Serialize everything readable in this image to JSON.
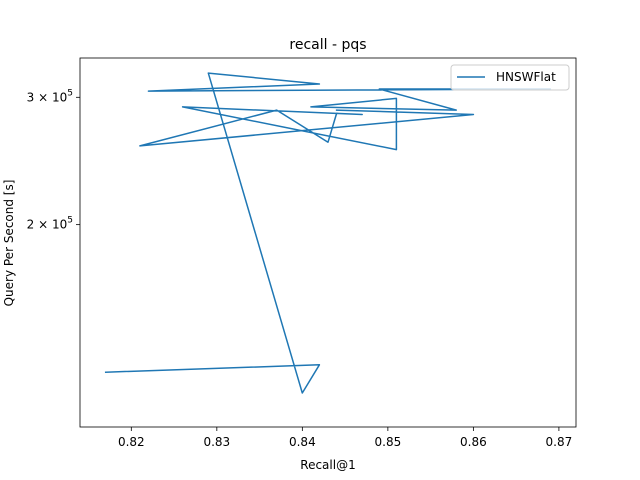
{
  "chart_data": {
    "type": "line",
    "title": "recall - pqs",
    "xlabel": "Recall@1",
    "ylabel": "Query Per Second [s]",
    "xlim": [
      0.814,
      0.872
    ],
    "ylim": [
      105000,
      340000
    ],
    "yscale": "log",
    "grid": false,
    "legend_position": "top-right",
    "x_ticks": [
      0.82,
      0.83,
      0.84,
      0.85,
      0.86,
      0.87
    ],
    "x_tick_labels": [
      "0.82",
      "0.83",
      "0.84",
      "0.85",
      "0.86",
      "0.87"
    ],
    "y_ticks": [
      200000,
      300000
    ],
    "y_tick_labels": [
      {
        "mantissa": "2",
        "sep": "×",
        "base": "10",
        "exp": "5"
      },
      {
        "mantissa": "3",
        "sep": "×",
        "base": "10",
        "exp": "5"
      }
    ],
    "series": [
      {
        "name": "HNSWFlat",
        "color": "#1f77b4",
        "x": [
          0.817,
          0.842,
          0.84,
          0.829,
          0.842,
          0.822,
          0.869,
          0.849,
          0.858,
          0.841,
          0.851,
          0.851,
          0.826,
          0.847,
          0.844,
          0.843,
          0.837,
          0.821,
          0.86,
          0.844
        ],
        "y": [
          125000,
          128000,
          117000,
          324000,
          313000,
          306000,
          308000,
          308000,
          288000,
          291000,
          299000,
          254000,
          291000,
          284000,
          285000,
          260000,
          288000,
          257000,
          284000,
          288000
        ]
      }
    ]
  }
}
